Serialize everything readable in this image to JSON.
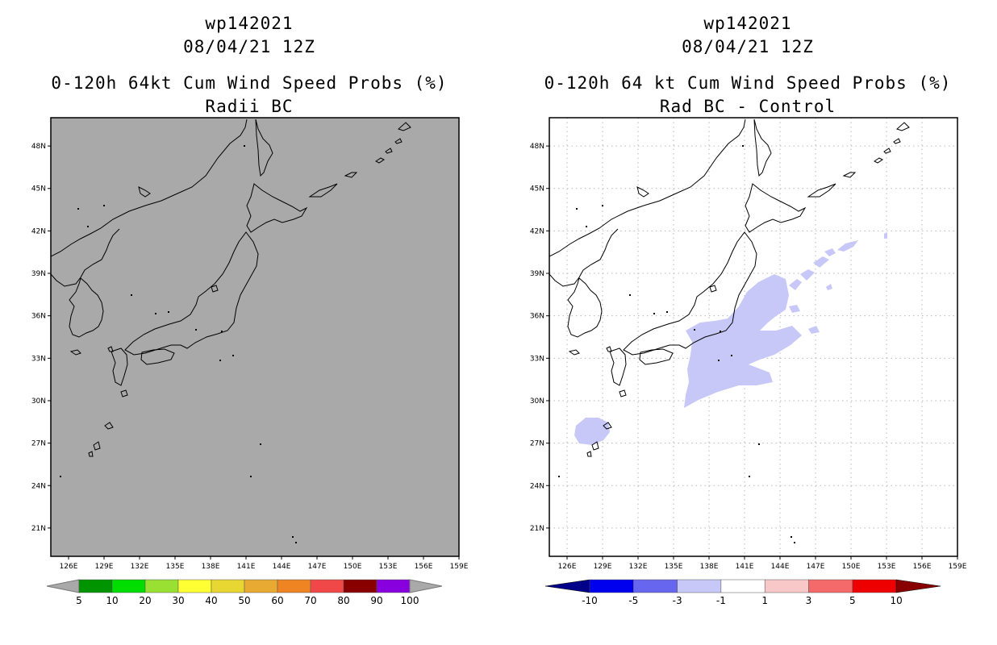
{
  "panels": [
    {
      "title1": "wp142021",
      "title2": "08/04/21 12Z",
      "title3": "0-120h 64kt Cum Wind Speed Probs (%)",
      "title4": "Radii BC",
      "map_background": "#a9a9a9",
      "colorbar": {
        "colors": [
          "#009400",
          "#00dd00",
          "#99e033",
          "#ffff33",
          "#e8d633",
          "#e8aa33",
          "#ee8422",
          "#f04848",
          "#880000",
          "#8800dd"
        ],
        "labels": [
          "5",
          "10",
          "20",
          "30",
          "40",
          "50",
          "60",
          "70",
          "80",
          "90",
          "100"
        ],
        "end_color": "#a9a9a9"
      }
    },
    {
      "title1": "wp142021",
      "title2": "08/04/21 12Z",
      "title3": "0-120h 64 kt Cum Wind Speed Probs (%)",
      "title4": "Rad BC - Control",
      "map_background": "#ffffff",
      "shading_color": "#c8c8f8",
      "colorbar": {
        "colors": [
          "#0000ee",
          "#6666ee",
          "#c8c8f8",
          "#ffffff",
          "#f8c8c8",
          "#f46a6a",
          "#ee0000"
        ],
        "labels": [
          "-10",
          "-5",
          "-3",
          "-1",
          "1",
          "3",
          "5",
          "10"
        ],
        "low_end_color": "#000088",
        "high_end_color": "#880000"
      }
    }
  ],
  "axes": {
    "lon_ticks": [
      "126E",
      "129E",
      "132E",
      "135E",
      "138E",
      "141E",
      "144E",
      "147E",
      "150E",
      "153E",
      "156E",
      "159E"
    ],
    "lat_ticks": [
      "48N",
      "45N",
      "42N",
      "39N",
      "36N",
      "33N",
      "30N",
      "27N",
      "24N",
      "21N"
    ],
    "lon_range": [
      124.5,
      159
    ],
    "lat_range": [
      19,
      50
    ]
  }
}
